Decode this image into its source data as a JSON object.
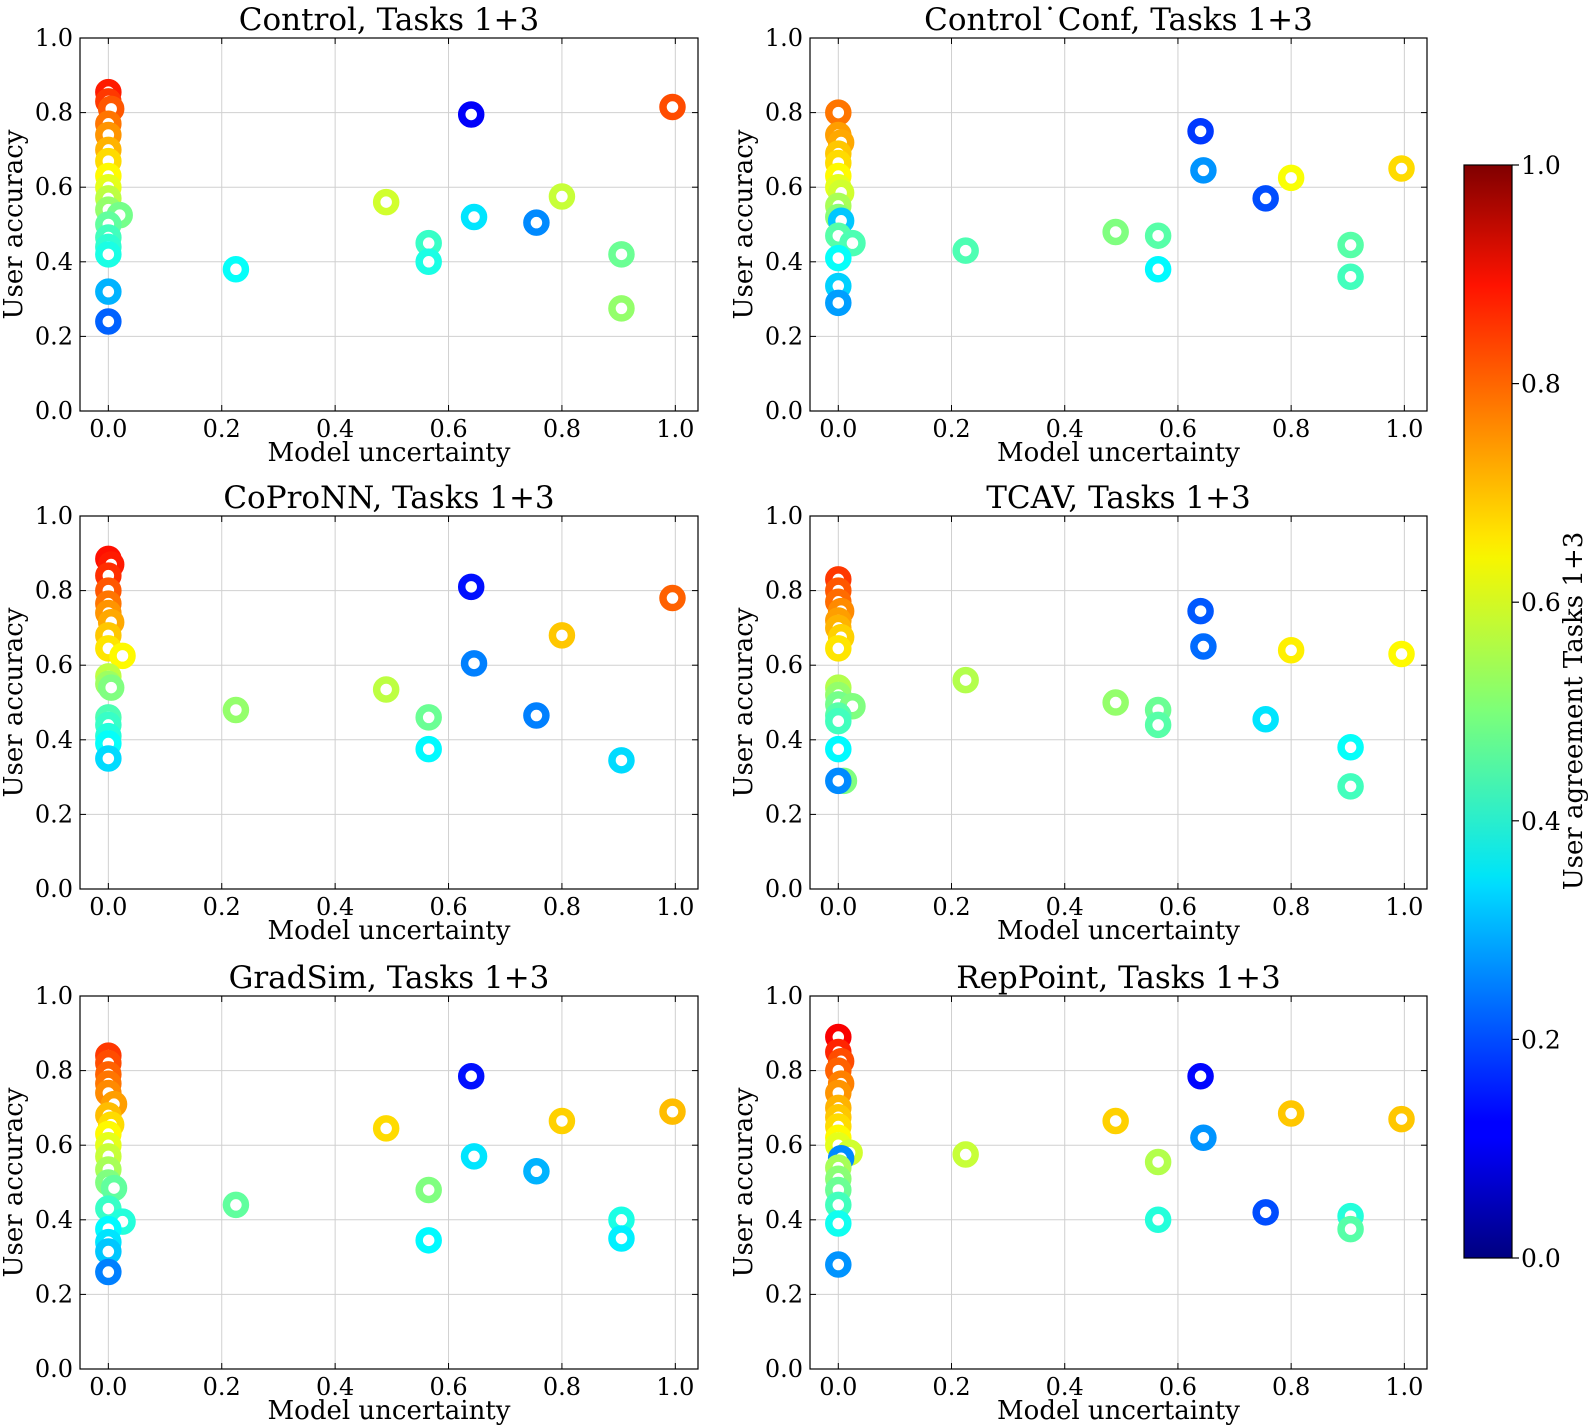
{
  "figure": {
    "colorbar": {
      "label": "User agreement Tasks 1+3",
      "min": 0,
      "max": 1,
      "ticks": [
        "0.0",
        "0.2",
        "0.4",
        "0.6",
        "0.8",
        "1.0"
      ],
      "colormap": "jet"
    }
  },
  "chart_data": [
    {
      "type": "scatter",
      "title": "Control, Tasks 1+3",
      "xlabel": "Model uncertainty",
      "ylabel": "User accuracy",
      "xlim": [
        -0.05,
        1.04
      ],
      "ylim": [
        0,
        1
      ],
      "xticks": [
        "0.0",
        "0.2",
        "0.4",
        "0.6",
        "0.8",
        "1.0"
      ],
      "yticks": [
        "0.0",
        "0.2",
        "0.4",
        "0.6",
        "0.8",
        "1.0"
      ],
      "grid": true,
      "color_encodes": "User agreement Tasks 1+3",
      "points": [
        {
          "x": 0.0,
          "y": 0.855,
          "c": 0.85
        },
        {
          "x": 0.0,
          "y": 0.83,
          "c": 0.82
        },
        {
          "x": 0.005,
          "y": 0.81,
          "c": 0.79
        },
        {
          "x": 0.0,
          "y": 0.77,
          "c": 0.76
        },
        {
          "x": 0.0,
          "y": 0.74,
          "c": 0.73
        },
        {
          "x": 0.0,
          "y": 0.7,
          "c": 0.7
        },
        {
          "x": 0.0,
          "y": 0.67,
          "c": 0.66
        },
        {
          "x": 0.0,
          "y": 0.63,
          "c": 0.63
        },
        {
          "x": 0.0,
          "y": 0.6,
          "c": 0.6
        },
        {
          "x": 0.0,
          "y": 0.57,
          "c": 0.56
        },
        {
          "x": 0.0,
          "y": 0.54,
          "c": 0.52
        },
        {
          "x": 0.02,
          "y": 0.525,
          "c": 0.49
        },
        {
          "x": 0.0,
          "y": 0.5,
          "c": 0.47
        },
        {
          "x": 0.0,
          "y": 0.465,
          "c": 0.44
        },
        {
          "x": 0.0,
          "y": 0.44,
          "c": 0.42
        },
        {
          "x": 0.0,
          "y": 0.42,
          "c": 0.4
        },
        {
          "x": 0.0,
          "y": 0.32,
          "c": 0.3
        },
        {
          "x": 0.0,
          "y": 0.24,
          "c": 0.22
        },
        {
          "x": 0.225,
          "y": 0.38,
          "c": 0.38
        },
        {
          "x": 0.49,
          "y": 0.56,
          "c": 0.58
        },
        {
          "x": 0.565,
          "y": 0.45,
          "c": 0.43
        },
        {
          "x": 0.565,
          "y": 0.4,
          "c": 0.4
        },
        {
          "x": 0.64,
          "y": 0.795,
          "c": 0.12
        },
        {
          "x": 0.645,
          "y": 0.52,
          "c": 0.35
        },
        {
          "x": 0.755,
          "y": 0.505,
          "c": 0.26
        },
        {
          "x": 0.8,
          "y": 0.575,
          "c": 0.57
        },
        {
          "x": 0.905,
          "y": 0.42,
          "c": 0.48
        },
        {
          "x": 0.905,
          "y": 0.275,
          "c": 0.52
        },
        {
          "x": 0.995,
          "y": 0.815,
          "c": 0.8
        }
      ]
    },
    {
      "type": "scatter",
      "title": "Control˙Conf, Tasks 1+3",
      "xlabel": "Model uncertainty",
      "ylabel": "User accuracy",
      "xlim": [
        -0.05,
        1.04
      ],
      "ylim": [
        0,
        1
      ],
      "xticks": [
        "0.0",
        "0.2",
        "0.4",
        "0.6",
        "0.8",
        "1.0"
      ],
      "yticks": [
        "0.0",
        "0.2",
        "0.4",
        "0.6",
        "0.8",
        "1.0"
      ],
      "grid": true,
      "color_encodes": "User agreement Tasks 1+3",
      "points": [
        {
          "x": 0.0,
          "y": 0.8,
          "c": 0.76
        },
        {
          "x": 0.0,
          "y": 0.74,
          "c": 0.72
        },
        {
          "x": 0.005,
          "y": 0.72,
          "c": 0.71
        },
        {
          "x": 0.0,
          "y": 0.69,
          "c": 0.68
        },
        {
          "x": 0.0,
          "y": 0.665,
          "c": 0.66
        },
        {
          "x": 0.0,
          "y": 0.63,
          "c": 0.63
        },
        {
          "x": 0.0,
          "y": 0.6,
          "c": 0.6
        },
        {
          "x": 0.005,
          "y": 0.585,
          "c": 0.58
        },
        {
          "x": 0.0,
          "y": 0.55,
          "c": 0.54
        },
        {
          "x": 0.0,
          "y": 0.52,
          "c": 0.51
        },
        {
          "x": 0.005,
          "y": 0.51,
          "c": 0.32
        },
        {
          "x": 0.0,
          "y": 0.47,
          "c": 0.46
        },
        {
          "x": 0.025,
          "y": 0.45,
          "c": 0.45
        },
        {
          "x": 0.0,
          "y": 0.41,
          "c": 0.38
        },
        {
          "x": 0.0,
          "y": 0.335,
          "c": 0.33
        },
        {
          "x": 0.0,
          "y": 0.29,
          "c": 0.28
        },
        {
          "x": 0.225,
          "y": 0.43,
          "c": 0.45
        },
        {
          "x": 0.49,
          "y": 0.48,
          "c": 0.5
        },
        {
          "x": 0.565,
          "y": 0.47,
          "c": 0.46
        },
        {
          "x": 0.565,
          "y": 0.38,
          "c": 0.37
        },
        {
          "x": 0.64,
          "y": 0.75,
          "c": 0.18
        },
        {
          "x": 0.645,
          "y": 0.645,
          "c": 0.27
        },
        {
          "x": 0.755,
          "y": 0.57,
          "c": 0.2
        },
        {
          "x": 0.8,
          "y": 0.625,
          "c": 0.62
        },
        {
          "x": 0.905,
          "y": 0.445,
          "c": 0.46
        },
        {
          "x": 0.905,
          "y": 0.36,
          "c": 0.44
        },
        {
          "x": 0.995,
          "y": 0.65,
          "c": 0.66
        }
      ]
    },
    {
      "type": "scatter",
      "title": "CoProNN, Tasks 1+3",
      "xlabel": "Model uncertainty",
      "ylabel": "User accuracy",
      "xlim": [
        -0.05,
        1.04
      ],
      "ylim": [
        0,
        1
      ],
      "xticks": [
        "0.0",
        "0.2",
        "0.4",
        "0.6",
        "0.8",
        "1.0"
      ],
      "yticks": [
        "0.0",
        "0.2",
        "0.4",
        "0.6",
        "0.8",
        "1.0"
      ],
      "grid": true,
      "color_encodes": "User agreement Tasks 1+3",
      "points": [
        {
          "x": 0.0,
          "y": 0.885,
          "c": 0.86
        },
        {
          "x": 0.005,
          "y": 0.87,
          "c": 0.85
        },
        {
          "x": 0.0,
          "y": 0.84,
          "c": 0.83
        },
        {
          "x": 0.0,
          "y": 0.8,
          "c": 0.79
        },
        {
          "x": 0.0,
          "y": 0.765,
          "c": 0.76
        },
        {
          "x": 0.0,
          "y": 0.74,
          "c": 0.73
        },
        {
          "x": 0.005,
          "y": 0.715,
          "c": 0.71
        },
        {
          "x": 0.0,
          "y": 0.68,
          "c": 0.68
        },
        {
          "x": 0.0,
          "y": 0.645,
          "c": 0.65
        },
        {
          "x": 0.025,
          "y": 0.625,
          "c": 0.63
        },
        {
          "x": 0.0,
          "y": 0.57,
          "c": 0.56
        },
        {
          "x": 0.0,
          "y": 0.55,
          "c": 0.53
        },
        {
          "x": 0.005,
          "y": 0.54,
          "c": 0.5
        },
        {
          "x": 0.0,
          "y": 0.46,
          "c": 0.45
        },
        {
          "x": 0.0,
          "y": 0.44,
          "c": 0.43
        },
        {
          "x": 0.0,
          "y": 0.41,
          "c": 0.41
        },
        {
          "x": 0.0,
          "y": 0.39,
          "c": 0.38
        },
        {
          "x": 0.0,
          "y": 0.35,
          "c": 0.34
        },
        {
          "x": 0.225,
          "y": 0.48,
          "c": 0.52
        },
        {
          "x": 0.49,
          "y": 0.535,
          "c": 0.56
        },
        {
          "x": 0.565,
          "y": 0.46,
          "c": 0.48
        },
        {
          "x": 0.565,
          "y": 0.375,
          "c": 0.37
        },
        {
          "x": 0.64,
          "y": 0.81,
          "c": 0.14
        },
        {
          "x": 0.645,
          "y": 0.605,
          "c": 0.25
        },
        {
          "x": 0.755,
          "y": 0.465,
          "c": 0.25
        },
        {
          "x": 0.8,
          "y": 0.68,
          "c": 0.68
        },
        {
          "x": 0.905,
          "y": 0.345,
          "c": 0.34
        },
        {
          "x": 0.995,
          "y": 0.78,
          "c": 0.78
        }
      ]
    },
    {
      "type": "scatter",
      "title": "TCAV, Tasks 1+3",
      "xlabel": "Model uncertainty",
      "ylabel": "User accuracy",
      "xlim": [
        -0.05,
        1.04
      ],
      "ylim": [
        0,
        1
      ],
      "xticks": [
        "0.0",
        "0.2",
        "0.4",
        "0.6",
        "0.8",
        "1.0"
      ],
      "yticks": [
        "0.0",
        "0.2",
        "0.4",
        "0.6",
        "0.8",
        "1.0"
      ],
      "grid": true,
      "color_encodes": "User agreement Tasks 1+3",
      "points": [
        {
          "x": 0.0,
          "y": 0.83,
          "c": 0.82
        },
        {
          "x": 0.0,
          "y": 0.8,
          "c": 0.79
        },
        {
          "x": 0.0,
          "y": 0.77,
          "c": 0.77
        },
        {
          "x": 0.005,
          "y": 0.745,
          "c": 0.74
        },
        {
          "x": 0.0,
          "y": 0.72,
          "c": 0.72
        },
        {
          "x": 0.0,
          "y": 0.7,
          "c": 0.7
        },
        {
          "x": 0.005,
          "y": 0.675,
          "c": 0.67
        },
        {
          "x": 0.0,
          "y": 0.645,
          "c": 0.65
        },
        {
          "x": 0.0,
          "y": 0.54,
          "c": 0.55
        },
        {
          "x": 0.0,
          "y": 0.52,
          "c": 0.52
        },
        {
          "x": 0.0,
          "y": 0.495,
          "c": 0.49
        },
        {
          "x": 0.025,
          "y": 0.49,
          "c": 0.5
        },
        {
          "x": 0.0,
          "y": 0.465,
          "c": 0.46
        },
        {
          "x": 0.0,
          "y": 0.45,
          "c": 0.44
        },
        {
          "x": 0.0,
          "y": 0.375,
          "c": 0.37
        },
        {
          "x": 0.01,
          "y": 0.29,
          "c": 0.5
        },
        {
          "x": 0.0,
          "y": 0.29,
          "c": 0.26
        },
        {
          "x": 0.225,
          "y": 0.56,
          "c": 0.55
        },
        {
          "x": 0.49,
          "y": 0.5,
          "c": 0.52
        },
        {
          "x": 0.565,
          "y": 0.48,
          "c": 0.48
        },
        {
          "x": 0.565,
          "y": 0.44,
          "c": 0.46
        },
        {
          "x": 0.64,
          "y": 0.745,
          "c": 0.21
        },
        {
          "x": 0.645,
          "y": 0.65,
          "c": 0.23
        },
        {
          "x": 0.755,
          "y": 0.455,
          "c": 0.35
        },
        {
          "x": 0.8,
          "y": 0.64,
          "c": 0.64
        },
        {
          "x": 0.905,
          "y": 0.38,
          "c": 0.38
        },
        {
          "x": 0.905,
          "y": 0.275,
          "c": 0.44
        },
        {
          "x": 0.995,
          "y": 0.63,
          "c": 0.63
        }
      ]
    },
    {
      "type": "scatter",
      "title": "GradSim, Tasks 1+3",
      "xlabel": "Model uncertainty",
      "ylabel": "User accuracy",
      "xlim": [
        -0.05,
        1.04
      ],
      "ylim": [
        0,
        1
      ],
      "xticks": [
        "0.0",
        "0.2",
        "0.4",
        "0.6",
        "0.8",
        "1.0"
      ],
      "yticks": [
        "0.0",
        "0.2",
        "0.4",
        "0.6",
        "0.8",
        "1.0"
      ],
      "grid": true,
      "color_encodes": "User agreement Tasks 1+3",
      "points": [
        {
          "x": 0.0,
          "y": 0.84,
          "c": 0.82
        },
        {
          "x": 0.0,
          "y": 0.82,
          "c": 0.8
        },
        {
          "x": 0.0,
          "y": 0.79,
          "c": 0.78
        },
        {
          "x": 0.0,
          "y": 0.765,
          "c": 0.76
        },
        {
          "x": 0.0,
          "y": 0.74,
          "c": 0.74
        },
        {
          "x": 0.01,
          "y": 0.71,
          "c": 0.72
        },
        {
          "x": 0.0,
          "y": 0.68,
          "c": 0.69
        },
        {
          "x": 0.005,
          "y": 0.655,
          "c": 0.66
        },
        {
          "x": 0.0,
          "y": 0.63,
          "c": 0.63
        },
        {
          "x": 0.0,
          "y": 0.6,
          "c": 0.6
        },
        {
          "x": 0.0,
          "y": 0.57,
          "c": 0.57
        },
        {
          "x": 0.0,
          "y": 0.535,
          "c": 0.54
        },
        {
          "x": 0.0,
          "y": 0.5,
          "c": 0.5
        },
        {
          "x": 0.01,
          "y": 0.485,
          "c": 0.47
        },
        {
          "x": 0.0,
          "y": 0.43,
          "c": 0.43
        },
        {
          "x": 0.025,
          "y": 0.395,
          "c": 0.41
        },
        {
          "x": 0.0,
          "y": 0.375,
          "c": 0.37
        },
        {
          "x": 0.0,
          "y": 0.34,
          "c": 0.35
        },
        {
          "x": 0.0,
          "y": 0.315,
          "c": 0.32
        },
        {
          "x": 0.0,
          "y": 0.26,
          "c": 0.25
        },
        {
          "x": 0.225,
          "y": 0.44,
          "c": 0.47
        },
        {
          "x": 0.49,
          "y": 0.645,
          "c": 0.66
        },
        {
          "x": 0.565,
          "y": 0.48,
          "c": 0.5
        },
        {
          "x": 0.565,
          "y": 0.345,
          "c": 0.37
        },
        {
          "x": 0.64,
          "y": 0.785,
          "c": 0.14
        },
        {
          "x": 0.645,
          "y": 0.57,
          "c": 0.35
        },
        {
          "x": 0.755,
          "y": 0.53,
          "c": 0.3
        },
        {
          "x": 0.8,
          "y": 0.665,
          "c": 0.67
        },
        {
          "x": 0.905,
          "y": 0.4,
          "c": 0.4
        },
        {
          "x": 0.905,
          "y": 0.35,
          "c": 0.36
        },
        {
          "x": 0.995,
          "y": 0.69,
          "c": 0.69
        }
      ]
    },
    {
      "type": "scatter",
      "title": "RepPoint, Tasks 1+3",
      "xlabel": "Model uncertainty",
      "ylabel": "User accuracy",
      "xlim": [
        -0.05,
        1.04
      ],
      "ylim": [
        0,
        1
      ],
      "xticks": [
        "0.0",
        "0.2",
        "0.4",
        "0.6",
        "0.8",
        "1.0"
      ],
      "yticks": [
        "0.0",
        "0.2",
        "0.4",
        "0.6",
        "0.8",
        "1.0"
      ],
      "grid": true,
      "color_encodes": "User agreement Tasks 1+3",
      "points": [
        {
          "x": 0.0,
          "y": 0.89,
          "c": 0.88
        },
        {
          "x": 0.0,
          "y": 0.85,
          "c": 0.84
        },
        {
          "x": 0.005,
          "y": 0.825,
          "c": 0.8
        },
        {
          "x": 0.0,
          "y": 0.8,
          "c": 0.78
        },
        {
          "x": 0.005,
          "y": 0.765,
          "c": 0.75
        },
        {
          "x": 0.0,
          "y": 0.74,
          "c": 0.73
        },
        {
          "x": 0.0,
          "y": 0.7,
          "c": 0.7
        },
        {
          "x": 0.0,
          "y": 0.675,
          "c": 0.68
        },
        {
          "x": 0.0,
          "y": 0.65,
          "c": 0.66
        },
        {
          "x": 0.0,
          "y": 0.62,
          "c": 0.63
        },
        {
          "x": 0.0,
          "y": 0.6,
          "c": 0.6
        },
        {
          "x": 0.02,
          "y": 0.58,
          "c": 0.58
        },
        {
          "x": 0.005,
          "y": 0.565,
          "c": 0.26
        },
        {
          "x": 0.0,
          "y": 0.54,
          "c": 0.54
        },
        {
          "x": 0.0,
          "y": 0.51,
          "c": 0.51
        },
        {
          "x": 0.0,
          "y": 0.48,
          "c": 0.48
        },
        {
          "x": 0.0,
          "y": 0.44,
          "c": 0.44
        },
        {
          "x": 0.0,
          "y": 0.39,
          "c": 0.39
        },
        {
          "x": 0.0,
          "y": 0.28,
          "c": 0.27
        },
        {
          "x": 0.225,
          "y": 0.575,
          "c": 0.57
        },
        {
          "x": 0.49,
          "y": 0.665,
          "c": 0.67
        },
        {
          "x": 0.565,
          "y": 0.555,
          "c": 0.55
        },
        {
          "x": 0.565,
          "y": 0.4,
          "c": 0.41
        },
        {
          "x": 0.64,
          "y": 0.785,
          "c": 0.13
        },
        {
          "x": 0.645,
          "y": 0.62,
          "c": 0.27
        },
        {
          "x": 0.755,
          "y": 0.42,
          "c": 0.2
        },
        {
          "x": 0.8,
          "y": 0.685,
          "c": 0.68
        },
        {
          "x": 0.905,
          "y": 0.41,
          "c": 0.41
        },
        {
          "x": 0.905,
          "y": 0.375,
          "c": 0.46
        },
        {
          "x": 0.995,
          "y": 0.67,
          "c": 0.68
        }
      ]
    }
  ]
}
